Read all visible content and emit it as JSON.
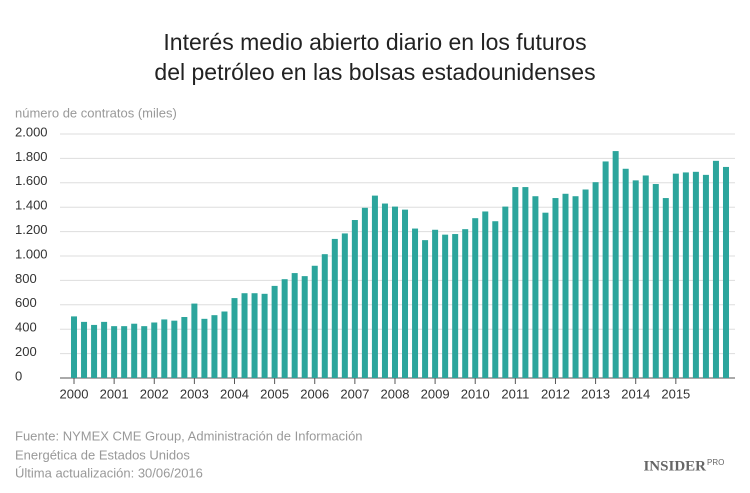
{
  "chart_data": {
    "type": "bar",
    "title": [
      "Interés medio abierto diario en los futuros",
      "del petróleo en las bolsas estadounidenses"
    ],
    "y_label": "número de contratos (miles)",
    "categories": [
      "2000",
      null,
      null,
      null,
      "2001",
      null,
      null,
      null,
      "2002",
      null,
      null,
      null,
      "2003",
      null,
      null,
      null,
      "2004",
      null,
      null,
      null,
      "2005",
      null,
      null,
      null,
      "2006",
      null,
      null,
      null,
      "2007",
      null,
      null,
      null,
      "2008",
      null,
      null,
      null,
      "2009",
      null,
      null,
      null,
      "2010",
      null,
      null,
      null,
      "2011",
      null,
      null,
      null,
      "2012",
      null,
      null,
      null,
      "2013",
      null,
      null,
      null,
      "2014",
      null,
      null,
      null,
      "2015",
      null,
      null,
      null,
      null,
      null
    ],
    "values": [
      505,
      460,
      435,
      460,
      425,
      425,
      445,
      425,
      455,
      480,
      470,
      500,
      610,
      485,
      515,
      545,
      655,
      695,
      695,
      690,
      755,
      810,
      860,
      835,
      920,
      1015,
      1140,
      1185,
      1295,
      1395,
      1495,
      1430,
      1405,
      1380,
      1225,
      1130,
      1215,
      1175,
      1180,
      1220,
      1310,
      1365,
      1285,
      1405,
      1565,
      1565,
      1490,
      1355,
      1475,
      1510,
      1490,
      1545,
      1605,
      1775,
      1860,
      1715,
      1620,
      1660,
      1590,
      1475,
      1675,
      1685,
      1690,
      1665,
      1780,
      1730
    ],
    "color": "#2ca59c",
    "ylim": [
      0,
      2000
    ],
    "yticks": [
      0,
      200,
      400,
      600,
      800,
      {
        "value": 1000,
        "label": "1.000"
      },
      {
        "value": 1200,
        "label": "1.200"
      },
      {
        "value": 1400,
        "label": "1.400"
      },
      {
        "value": 1600,
        "label": "1.600"
      },
      {
        "value": 1800,
        "label": "1.800"
      },
      {
        "value": 2000,
        "label": "2.000"
      }
    ],
    "grid": true,
    "source": [
      "Fuente: NYMEX CME Group, Administración de Información",
      "Energética de Estados Unidos",
      "Última actualización: 30/06/2016"
    ],
    "logo": {
      "text": "INSIDER",
      "sup": "PRO"
    }
  }
}
